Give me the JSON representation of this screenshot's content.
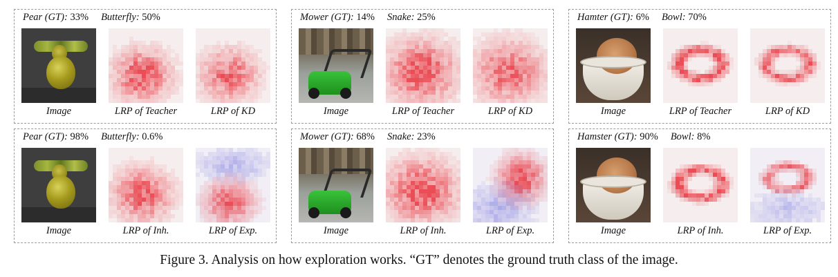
{
  "panels": [
    {
      "header": {
        "gt_label": "Pear (GT)",
        "gt_pct": "33%",
        "other_label": "Butterfly",
        "other_pct": "50%"
      },
      "captions": [
        "Image",
        "LRP of Teacher",
        "LRP of KD"
      ],
      "photo": "pear"
    },
    {
      "header": {
        "gt_label": "Mower (GT)",
        "gt_pct": "14%",
        "other_label": "Snake",
        "other_pct": "25%"
      },
      "captions": [
        "Image",
        "LRP of Teacher",
        "LRP of KD"
      ],
      "photo": "mower"
    },
    {
      "header": {
        "gt_label": "Hamter (GT)",
        "gt_pct": "6%",
        "other_label": "Bowl",
        "other_pct": "70%"
      },
      "captions": [
        "Image",
        "LRP of Teacher",
        "LRP of KD"
      ],
      "photo": "hamster"
    },
    {
      "header": {
        "gt_label": "Pear (GT)",
        "gt_pct": "98%",
        "other_label": "Butterfly",
        "other_pct": "0.6%"
      },
      "captions": [
        "Image",
        "LRP of Inh.",
        "LRP of Exp."
      ],
      "photo": "pear"
    },
    {
      "header": {
        "gt_label": "Mower (GT)",
        "gt_pct": "68%",
        "other_label": "Snake",
        "other_pct": "23%"
      },
      "captions": [
        "Image",
        "LRP of Inh.",
        "LRP of Exp."
      ],
      "photo": "mower"
    },
    {
      "header": {
        "gt_label": "Hamster (GT)",
        "gt_pct": "90%",
        "other_label": "Bowl",
        "other_pct": "8%"
      },
      "captions": [
        "Image",
        "LRP of Inh.",
        "LRP of Exp."
      ],
      "photo": "hamster"
    }
  ],
  "caption": "Figure 3.  Analysis on how exploration works. “GT” denotes the ground truth class of the image.",
  "colors": {
    "heat_positive": "#e8303a",
    "heat_negative": "#5a5ad8",
    "border": "#9a9a9a"
  }
}
